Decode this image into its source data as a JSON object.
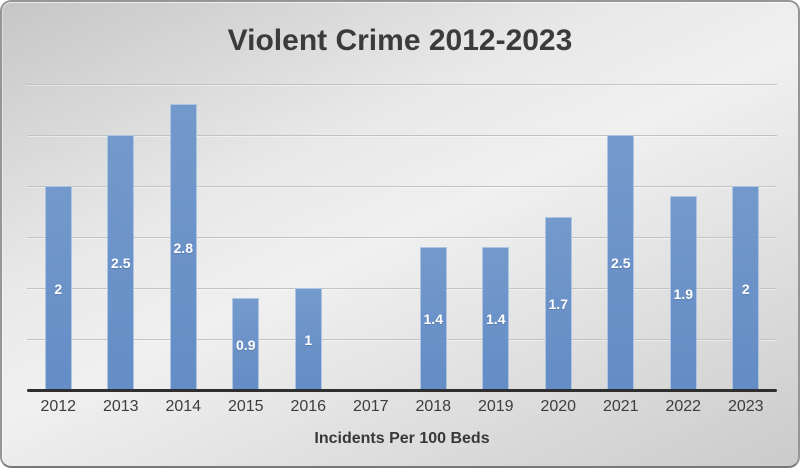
{
  "chart_data": {
    "type": "bar",
    "title": "Violent Crime 2012-2023",
    "xlabel": "Incidents Per 100 Beds",
    "ylabel": "",
    "categories": [
      "2012",
      "2013",
      "2014",
      "2015",
      "2016",
      "2017",
      "2018",
      "2019",
      "2020",
      "2021",
      "2022",
      "2023"
    ],
    "values": [
      2,
      2.5,
      2.8,
      0.9,
      1,
      null,
      1.4,
      1.4,
      1.7,
      2.5,
      1.9,
      2
    ],
    "data_labels": [
      "2",
      "2.5",
      "2.8",
      "0.9",
      "1",
      "",
      "1.4",
      "1.4",
      "1.7",
      "2.5",
      "1.9",
      "2"
    ],
    "ylim": [
      0,
      3
    ],
    "gridline_step": 0.5,
    "grid": true,
    "legend": false,
    "y_axis_labels_shown": false,
    "colors": {
      "bar_fill": "#6590c7",
      "bar_edge": "#aec5e2",
      "data_label": "#ffffff",
      "gridline": "#c2c2c2",
      "axis_line": "#2e2e2e",
      "title_text": "#3b3b3b",
      "tick_text": "#3d3d3d"
    }
  }
}
